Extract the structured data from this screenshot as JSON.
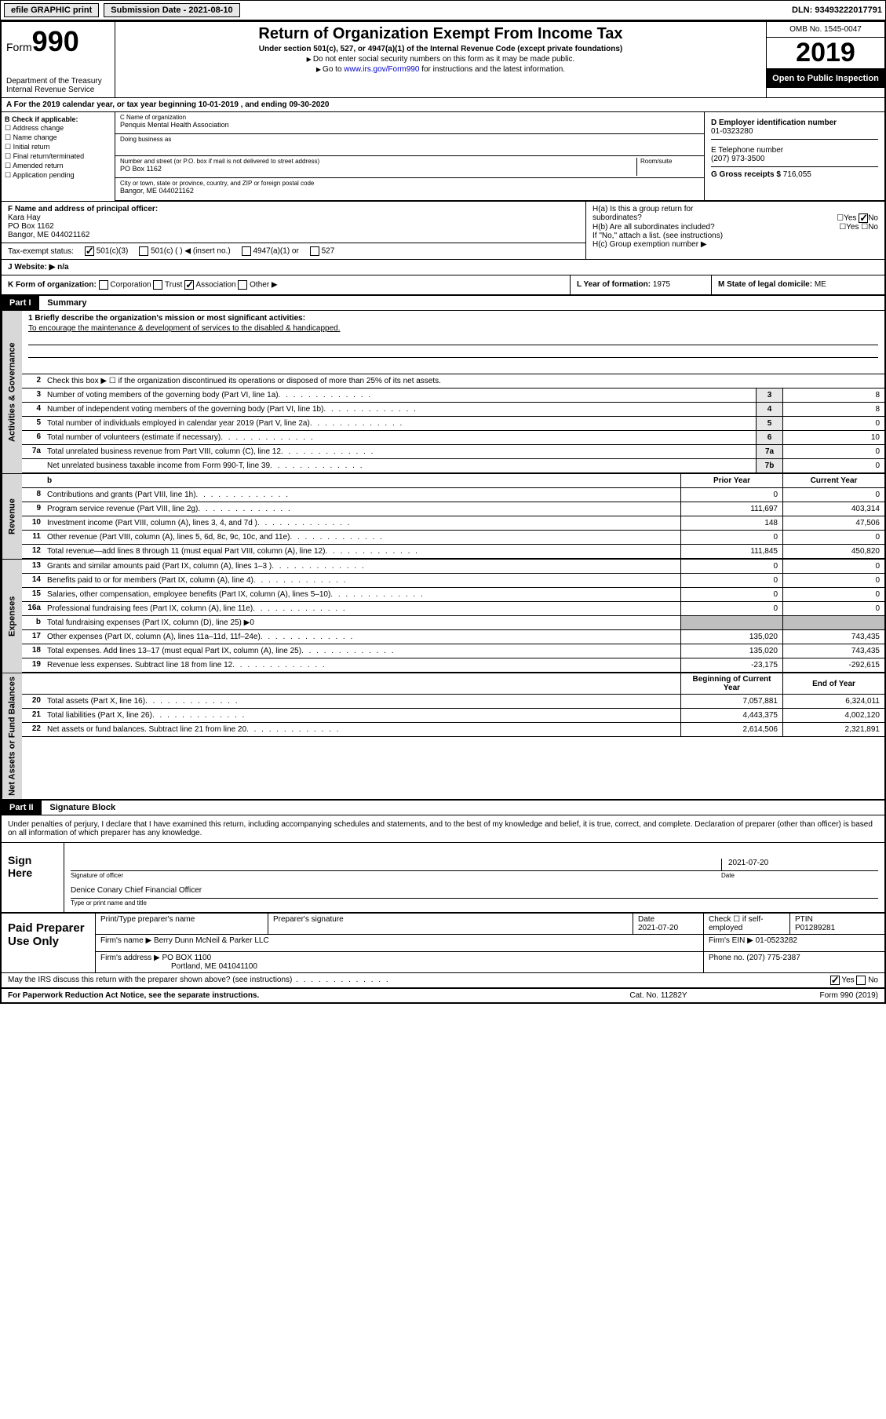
{
  "topbar": {
    "efile": "efile GRAPHIC print",
    "submission_label": "Submission Date - 2021-08-10",
    "dln": "DLN: 93493222017791"
  },
  "header": {
    "form_label": "Form",
    "form_number": "990",
    "dept": "Department of the Treasury\nInternal Revenue Service",
    "title": "Return of Organization Exempt From Income Tax",
    "subtitle": "Under section 501(c), 527, or 4947(a)(1) of the Internal Revenue Code (except private foundations)",
    "note1": "Do not enter social security numbers on this form as it may be made public.",
    "note2_pre": "Go to ",
    "note2_link": "www.irs.gov/Form990",
    "note2_post": " for instructions and the latest information.",
    "omb": "OMB No. 1545-0047",
    "year": "2019",
    "inspect": "Open to Public Inspection"
  },
  "row_a": "A  For the 2019 calendar year, or tax year beginning 10-01-2019    , and ending 09-30-2020",
  "col_b": {
    "label": "B Check if applicable:",
    "items": [
      "Address change",
      "Name change",
      "Initial return",
      "Final return/terminated",
      "Amended return",
      "Application pending"
    ]
  },
  "c": {
    "name_lbl": "C Name of organization",
    "name": "Penquis Mental Health Association",
    "dba_lbl": "Doing business as",
    "street_lbl": "Number and street (or P.O. box if mail is not delivered to street address)",
    "room_lbl": "Room/suite",
    "street": "PO Box 1162",
    "city_lbl": "City or town, state or province, country, and ZIP or foreign postal code",
    "city": "Bangor, ME  044021162"
  },
  "d": {
    "ein_lbl": "D Employer identification number",
    "ein": "01-0323280",
    "phone_lbl": "E Telephone number",
    "phone": "(207) 973-3500",
    "gross_lbl": "G Gross receipts $",
    "gross": "716,055"
  },
  "f": {
    "lbl": "F Name and address of principal officer:",
    "name": "Kara Hay",
    "addr1": "PO Box 1162",
    "addr2": "Bangor, ME  044021162"
  },
  "h": {
    "a_lbl": "H(a)  Is this a group return for",
    "a_sub": "subordinates?",
    "b_lbl": "H(b)  Are all subordinates included?",
    "b_note": "If \"No,\" attach a list. (see instructions)",
    "c_lbl": "H(c)  Group exemption number ▶"
  },
  "status": {
    "lbl": "Tax-exempt status:",
    "opt1": "501(c)(3)",
    "opt2": "501(c) (   ) ◀ (insert no.)",
    "opt3": "4947(a)(1) or",
    "opt4": "527"
  },
  "website": {
    "lbl": "J   Website: ▶",
    "val": "n/a"
  },
  "k": {
    "lbl": "K Form of organization:",
    "opts": [
      "Corporation",
      "Trust",
      "Association",
      "Other ▶"
    ]
  },
  "l": {
    "lbl": "L Year of formation:",
    "val": "1975"
  },
  "m": {
    "lbl": "M State of legal domicile:",
    "val": "ME"
  },
  "part1": {
    "hdr": "Part I",
    "title": "Summary",
    "mission_lbl": "1  Briefly describe the organization's mission or most significant activities:",
    "mission": "To encourage the maintenance & development of services to the disabled & handicapped.",
    "line2": "Check this box ▶ ☐  if the organization discontinued its operations or disposed of more than 25% of its net assets.",
    "governance": [
      {
        "n": "3",
        "t": "Number of voting members of the governing body (Part VI, line 1a)",
        "b": "3",
        "v": "8"
      },
      {
        "n": "4",
        "t": "Number of independent voting members of the governing body (Part VI, line 1b)",
        "b": "4",
        "v": "8"
      },
      {
        "n": "5",
        "t": "Total number of individuals employed in calendar year 2019 (Part V, line 2a)",
        "b": "5",
        "v": "0"
      },
      {
        "n": "6",
        "t": "Total number of volunteers (estimate if necessary)",
        "b": "6",
        "v": "10"
      },
      {
        "n": "7a",
        "t": "Total unrelated business revenue from Part VIII, column (C), line 12",
        "b": "7a",
        "v": "0"
      },
      {
        "n": "",
        "t": "Net unrelated business taxable income from Form 990-T, line 39",
        "b": "7b",
        "v": "0"
      }
    ],
    "col_hdr_prior": "Prior Year",
    "col_hdr_current": "Current Year",
    "revenue": [
      {
        "n": "8",
        "t": "Contributions and grants (Part VIII, line 1h)",
        "p": "0",
        "c": "0"
      },
      {
        "n": "9",
        "t": "Program service revenue (Part VIII, line 2g)",
        "p": "111,697",
        "c": "403,314"
      },
      {
        "n": "10",
        "t": "Investment income (Part VIII, column (A), lines 3, 4, and 7d )",
        "p": "148",
        "c": "47,506"
      },
      {
        "n": "11",
        "t": "Other revenue (Part VIII, column (A), lines 5, 6d, 8c, 9c, 10c, and 11e)",
        "p": "0",
        "c": "0"
      },
      {
        "n": "12",
        "t": "Total revenue—add lines 8 through 11 (must equal Part VIII, column (A), line 12)",
        "p": "111,845",
        "c": "450,820"
      }
    ],
    "expenses": [
      {
        "n": "13",
        "t": "Grants and similar amounts paid (Part IX, column (A), lines 1–3 )",
        "p": "0",
        "c": "0"
      },
      {
        "n": "14",
        "t": "Benefits paid to or for members (Part IX, column (A), line 4)",
        "p": "0",
        "c": "0"
      },
      {
        "n": "15",
        "t": "Salaries, other compensation, employee benefits (Part IX, column (A), lines 5–10)",
        "p": "0",
        "c": "0"
      },
      {
        "n": "16a",
        "t": "Professional fundraising fees (Part IX, column (A), line 11e)",
        "p": "0",
        "c": "0"
      },
      {
        "n": "b",
        "t": "Total fundraising expenses (Part IX, column (D), line 25) ▶0",
        "p": "",
        "c": "",
        "shade": true
      },
      {
        "n": "17",
        "t": "Other expenses (Part IX, column (A), lines 11a–11d, 11f–24e)",
        "p": "135,020",
        "c": "743,435"
      },
      {
        "n": "18",
        "t": "Total expenses. Add lines 13–17 (must equal Part IX, column (A), line 25)",
        "p": "135,020",
        "c": "743,435"
      },
      {
        "n": "19",
        "t": "Revenue less expenses. Subtract line 18 from line 12",
        "p": "-23,175",
        "c": "-292,615"
      }
    ],
    "col_hdr_begin": "Beginning of Current Year",
    "col_hdr_end": "End of Year",
    "netassets": [
      {
        "n": "20",
        "t": "Total assets (Part X, line 16)",
        "p": "7,057,881",
        "c": "6,324,011"
      },
      {
        "n": "21",
        "t": "Total liabilities (Part X, line 26)",
        "p": "4,443,375",
        "c": "4,002,120"
      },
      {
        "n": "22",
        "t": "Net assets or fund balances. Subtract line 21 from line 20",
        "p": "2,614,506",
        "c": "2,321,891"
      }
    ],
    "side_gov": "Activities & Governance",
    "side_rev": "Revenue",
    "side_exp": "Expenses",
    "side_net": "Net Assets or Fund Balances"
  },
  "part2": {
    "hdr": "Part II",
    "title": "Signature Block",
    "declaration": "Under penalties of perjury, I declare that I have examined this return, including accompanying schedules and statements, and to the best of my knowledge and belief, it is true, correct, and complete. Declaration of preparer (other than officer) is based on all information of which preparer has any knowledge."
  },
  "sign": {
    "lbl": "Sign Here",
    "sig_lbl": "Signature of officer",
    "date": "2021-07-20",
    "date_lbl": "Date",
    "name": "Denice Conary  Chief Financial Officer",
    "name_lbl": "Type or print name and title"
  },
  "paid": {
    "lbl": "Paid Preparer Use Only",
    "h1": "Print/Type preparer's name",
    "h2": "Preparer's signature",
    "h3_lbl": "Date",
    "h3": "2021-07-20",
    "h4": "Check ☐ if self-employed",
    "h5_lbl": "PTIN",
    "h5": "P01289281",
    "firm_lbl": "Firm's name    ▶",
    "firm": "Berry Dunn McNeil & Parker LLC",
    "ein_lbl": "Firm's EIN ▶",
    "ein": "01-0523282",
    "addr_lbl": "Firm's address ▶",
    "addr1": "PO BOX 1100",
    "addr2": "Portland, ME  041041100",
    "phone_lbl": "Phone no.",
    "phone": "(207) 775-2387"
  },
  "footer": {
    "discuss": "May the IRS discuss this return with the preparer shown above? (see instructions)",
    "yes": "Yes",
    "no": "No",
    "paperwork": "For Paperwork Reduction Act Notice, see the separate instructions.",
    "cat": "Cat. No. 11282Y",
    "form": "Form 990 (2019)"
  }
}
